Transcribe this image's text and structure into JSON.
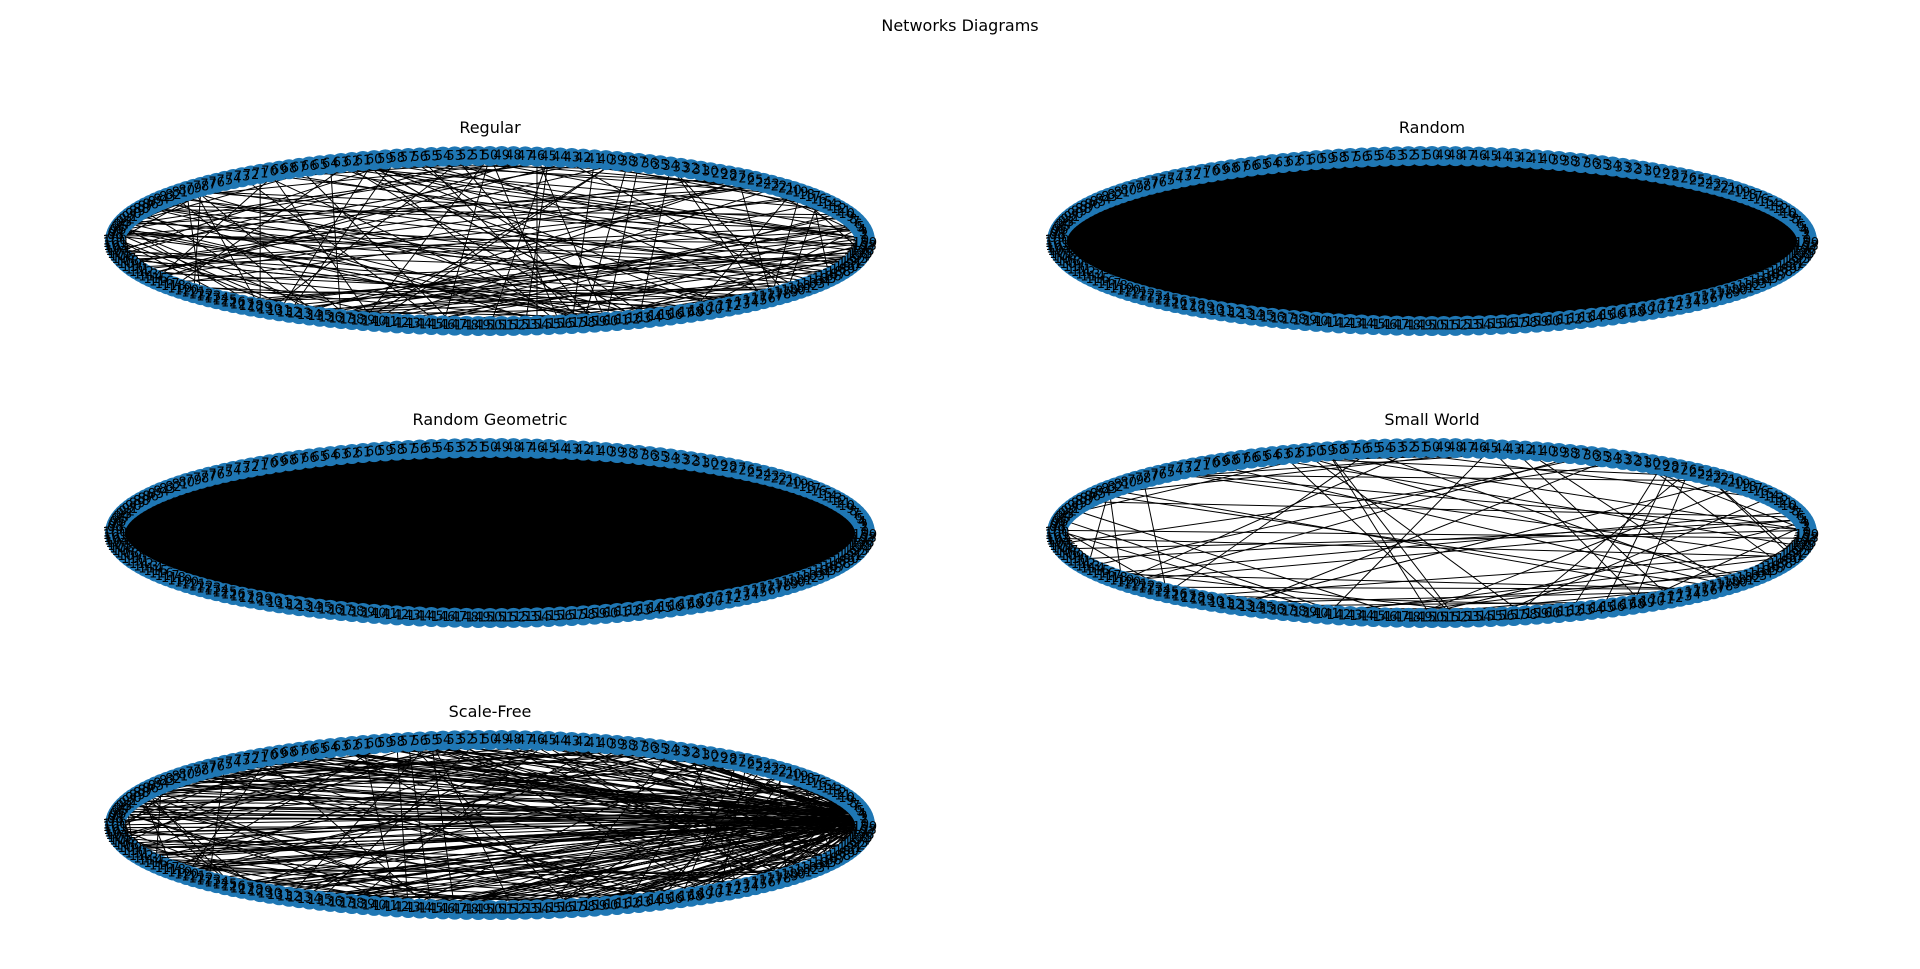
{
  "title": "Networks Diagrams",
  "colors": {
    "node": "#1f77b4",
    "edge": "#000000",
    "background": "#ffffff"
  },
  "diagram": {
    "layout": "circular",
    "nodes_per_graph": 200,
    "panels": [
      {
        "title": "Regular",
        "density": "medium"
      },
      {
        "title": "Random",
        "density": "very dense"
      },
      {
        "title": "Random Geometric",
        "density": "very dense"
      },
      {
        "title": "Small World",
        "density": "sparse"
      },
      {
        "title": "Scale-Free",
        "density": "dense"
      }
    ]
  }
}
